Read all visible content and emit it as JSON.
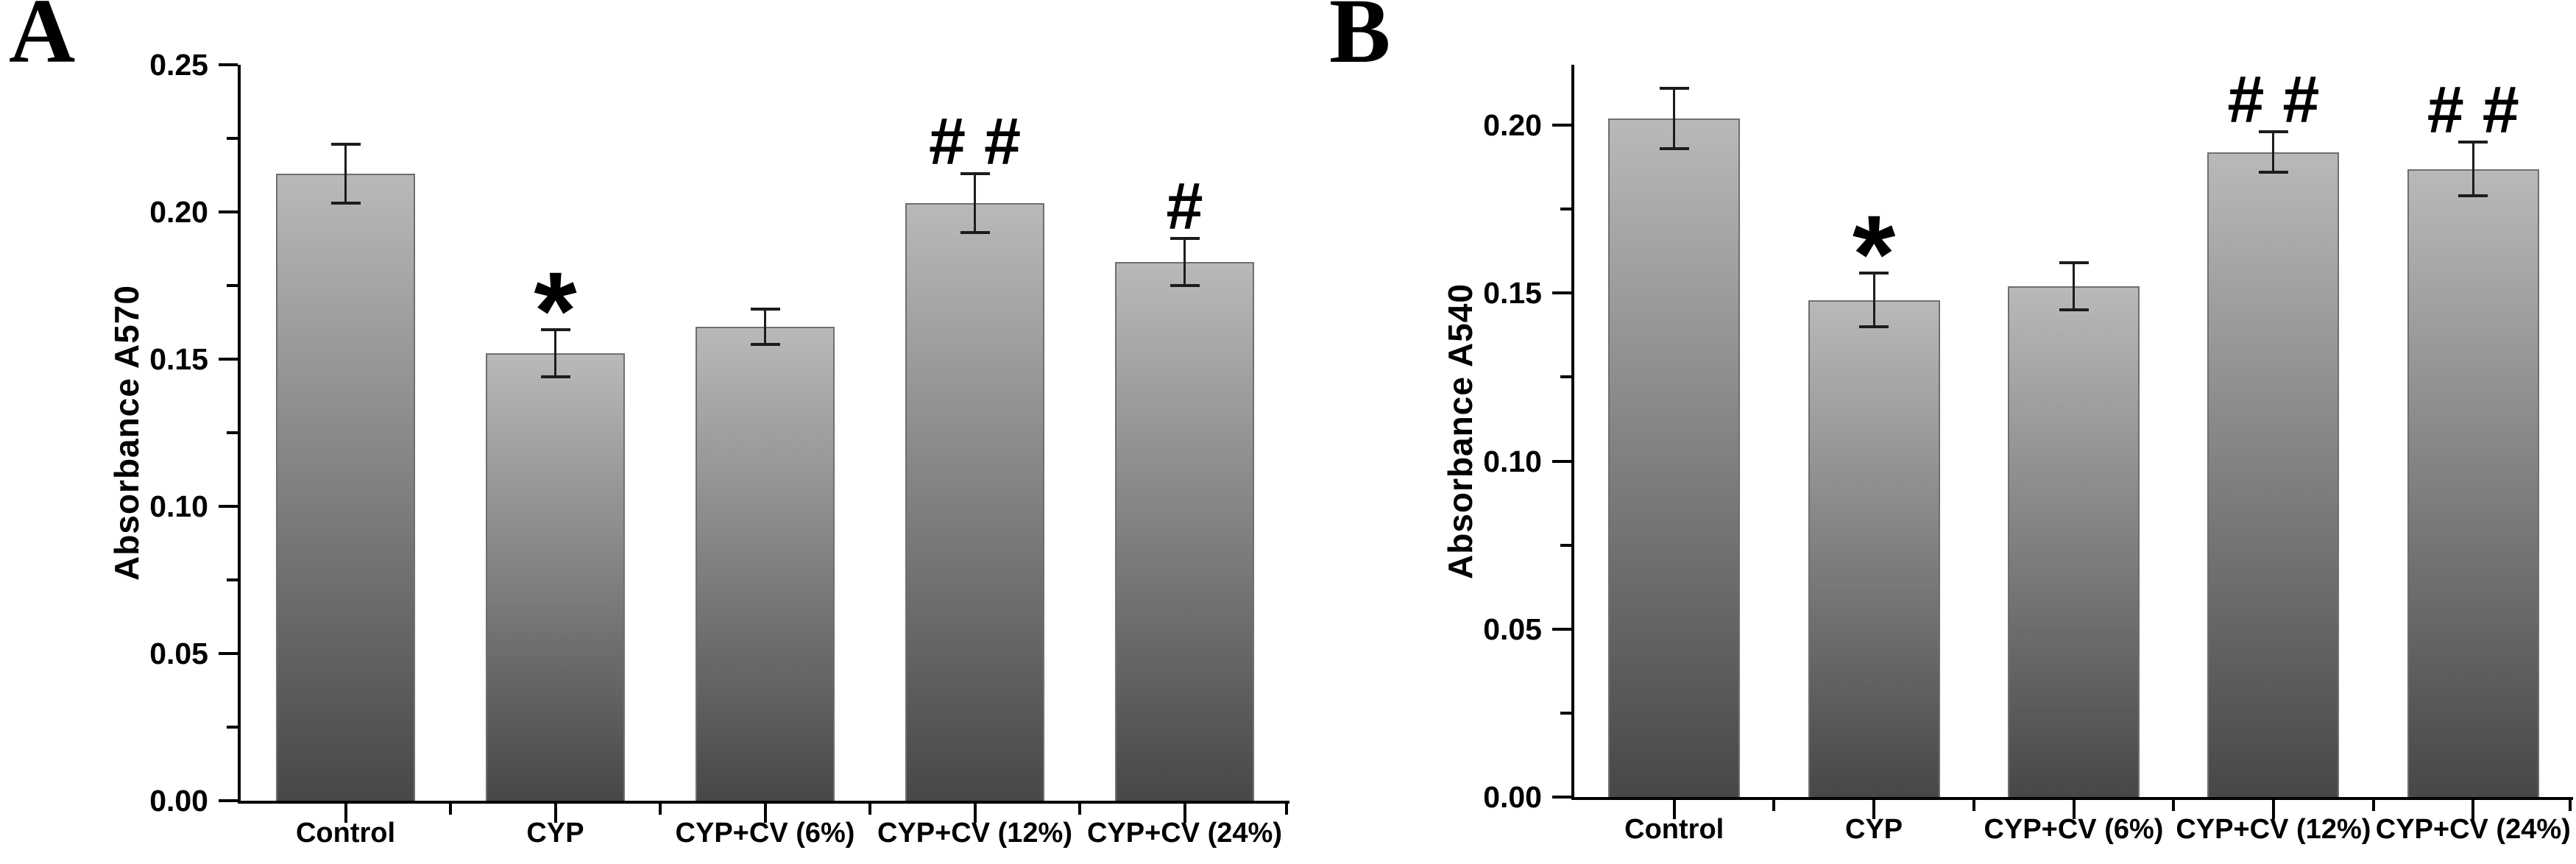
{
  "figure": {
    "background": "#ffffff",
    "text_color": "#000000",
    "axis_color": "#000000"
  },
  "chart_data": [
    {
      "type": "bar",
      "panel_label": "A",
      "title": "",
      "xlabel": "",
      "ylabel": "Absorbance A570",
      "categories": [
        "Control",
        "CYP",
        "CYP+CV (6%)",
        "CYP+CV (12%)",
        "CYP+CV (24%)"
      ],
      "values": [
        0.213,
        0.152,
        0.161,
        0.203,
        0.183
      ],
      "errors": [
        0.01,
        0.008,
        0.006,
        0.01,
        0.008
      ],
      "annotations": [
        "",
        "*",
        "",
        "# #",
        "#"
      ],
      "ylim": [
        0,
        0.25
      ],
      "yticks": [
        0,
        0.05,
        0.1,
        0.15,
        0.2,
        0.25
      ],
      "yticks_minor": [
        0.025,
        0.075,
        0.125,
        0.175,
        0.225
      ],
      "grid": false,
      "legend": null,
      "bar_color_top": "#b9b9b9",
      "bar_color_bottom": "#474747",
      "bar_border_color": "#6f6f6f",
      "error_bar_color": "#1c1c1c"
    },
    {
      "type": "bar",
      "panel_label": "B",
      "title": "",
      "xlabel": "",
      "ylabel": "Absorbance A540",
      "categories": [
        "Control",
        "CYP",
        "CYP+CV (6%)",
        "CYP+CV (12%)",
        "CYP+CV (24%)"
      ],
      "values": [
        0.202,
        0.148,
        0.152,
        0.192,
        0.187
      ],
      "errors": [
        0.009,
        0.008,
        0.007,
        0.006,
        0.008
      ],
      "annotations": [
        "",
        "*",
        "",
        "# #",
        "# #"
      ],
      "ylim": [
        0,
        0.218
      ],
      "yticks": [
        0,
        0.05,
        0.1,
        0.15,
        0.2
      ],
      "yticks_minor": [
        0.025,
        0.075,
        0.125,
        0.175
      ],
      "grid": false,
      "legend": null,
      "bar_color_top": "#b9b9b9",
      "bar_color_bottom": "#474747",
      "bar_border_color": "#6f6f6f",
      "error_bar_color": "#1c1c1c"
    }
  ]
}
